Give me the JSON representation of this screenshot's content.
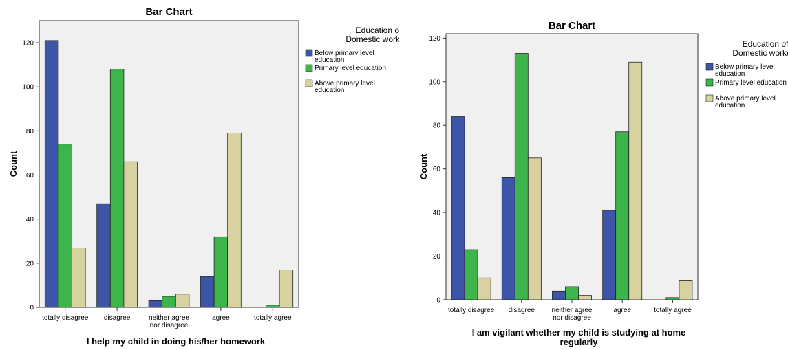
{
  "chart_data": [
    {
      "type": "bar",
      "title": "Bar Chart",
      "xlabel": "I help my child in doing his/her homework",
      "xlabel_lines": [
        "I help my child in doing his/her homework"
      ],
      "ylabel": "Count",
      "ylim": [
        0,
        130
      ],
      "yticks": [
        0,
        20,
        40,
        60,
        80,
        100,
        120
      ],
      "grid": false,
      "legend_position": "right",
      "legend_title_lines": [
        "Education of",
        "Domestic workers"
      ],
      "categories": [
        "totally disagree",
        "disagree",
        "neither agree nor disagree",
        "agree",
        "totally agree"
      ],
      "category_lines": [
        [
          "totally disagree"
        ],
        [
          "disagree"
        ],
        [
          "neither agree",
          "nor disagree"
        ],
        [
          "agree"
        ],
        [
          "totally agree"
        ]
      ],
      "series": [
        {
          "name": "Below primary level education",
          "legend_lines": [
            "Below primary level",
            "education"
          ],
          "color": "#3D55A6",
          "values": [
            121,
            47,
            3,
            14,
            0
          ]
        },
        {
          "name": "Primary level education",
          "legend_lines": [
            "Primary level education"
          ],
          "color": "#3DB54A",
          "values": [
            74,
            108,
            5,
            32,
            1
          ]
        },
        {
          "name": "Above primary level education",
          "legend_lines": [
            "Above primary level",
            "education"
          ],
          "color": "#D7D2A0",
          "values": [
            27,
            66,
            6,
            79,
            17
          ]
        }
      ]
    },
    {
      "type": "bar",
      "title": "Bar Chart",
      "xlabel": "I am vigilant whether my child is studying at home regularly",
      "xlabel_lines": [
        "I am vigilant whether my child is studying at home",
        "regularly"
      ],
      "ylabel": "Count",
      "ylim": [
        0,
        122
      ],
      "yticks": [
        0,
        20,
        40,
        60,
        80,
        100,
        120
      ],
      "grid": false,
      "legend_position": "right",
      "legend_title_lines": [
        "Education of",
        "Domestic workers"
      ],
      "categories": [
        "totally disagree",
        "disagree",
        "neither agree nor disagree",
        "agree",
        "totally agree"
      ],
      "category_lines": [
        [
          "totally disagree"
        ],
        [
          "disagree"
        ],
        [
          "neither agree",
          "nor disagree"
        ],
        [
          "agree"
        ],
        [
          "totally agree"
        ]
      ],
      "series": [
        {
          "name": "Below primary level education",
          "legend_lines": [
            "Below primary level",
            "education"
          ],
          "color": "#3D55A6",
          "values": [
            84,
            56,
            4,
            41,
            0
          ]
        },
        {
          "name": "Primary level education",
          "legend_lines": [
            "Primary level education"
          ],
          "color": "#3DB54A",
          "values": [
            23,
            113,
            6,
            77,
            1
          ]
        },
        {
          "name": "Above primary level education",
          "legend_lines": [
            "Above primary level",
            "education"
          ],
          "color": "#D7D2A0",
          "values": [
            10,
            65,
            2,
            109,
            9
          ]
        }
      ]
    }
  ]
}
